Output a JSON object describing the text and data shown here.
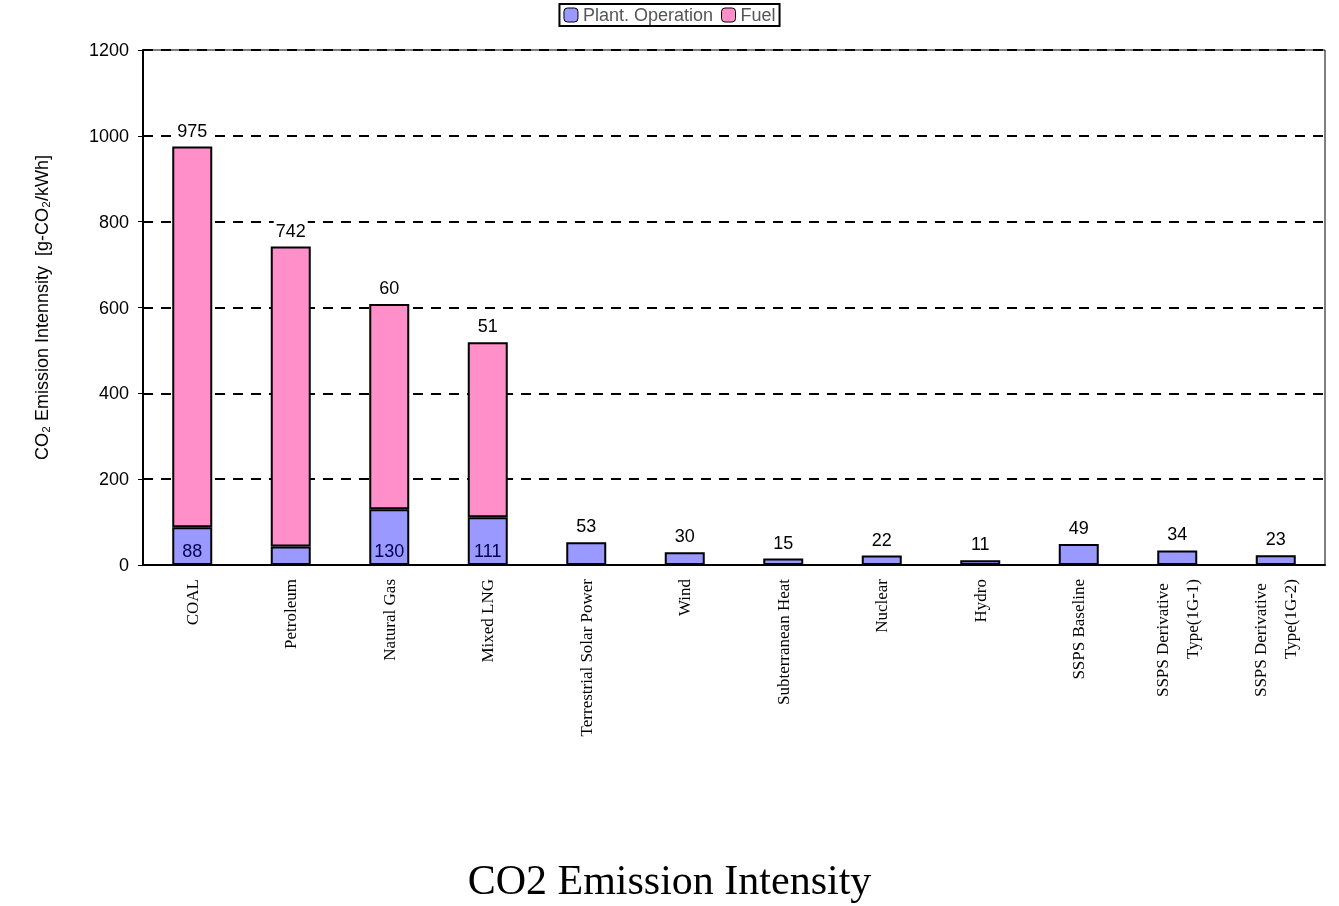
{
  "chart_data": {
    "type": "bar",
    "title": "CO2 Emission Intensity",
    "ylabel": "CO₂ Emission Intennsity  [g-CO₂/kWh]",
    "categories": [
      "COAL",
      "Petroleum",
      "Natural Gas",
      "Mixed LNG",
      "Terrestrial Solar Power",
      "Wind",
      "Subterranean Heat",
      "Nuclear",
      "Hydro",
      "SSPS Baseline",
      "SSPS Derivative Type(1G-1)",
      "SSPS Derivative Type(1G-2)"
    ],
    "series": [
      {
        "name": "Plant. Operation",
        "color": "#9999ff",
        "values": [
          88,
          43,
          130,
          111,
          53,
          30,
          15,
          22,
          11,
          49,
          34,
          23
        ],
        "value_labels": [
          "88",
          null,
          "130",
          "111",
          null,
          null,
          null,
          null,
          null,
          null,
          null,
          null
        ]
      },
      {
        "name": "Fuel",
        "color": "#ff8fc8",
        "values": [
          887,
          699,
          478,
          408,
          null,
          null,
          null,
          null,
          null,
          null,
          null,
          null
        ]
      }
    ],
    "stacked": true,
    "totals": [
      "975",
      "742",
      null,
      null,
      "53",
      "30",
      "15",
      "22",
      "11",
      "49",
      "34",
      "23"
    ],
    "ylim": [
      0,
      1200
    ],
    "yticks": [
      0,
      200,
      400,
      600,
      800,
      1000,
      1200
    ],
    "annotations": [
      {
        "text": "60",
        "x": "Natural Gas",
        "y": 608
      },
      {
        "text": "51",
        "x": "Mixed LNG",
        "y": 519
      }
    ],
    "grid": "y",
    "legend": "top"
  }
}
